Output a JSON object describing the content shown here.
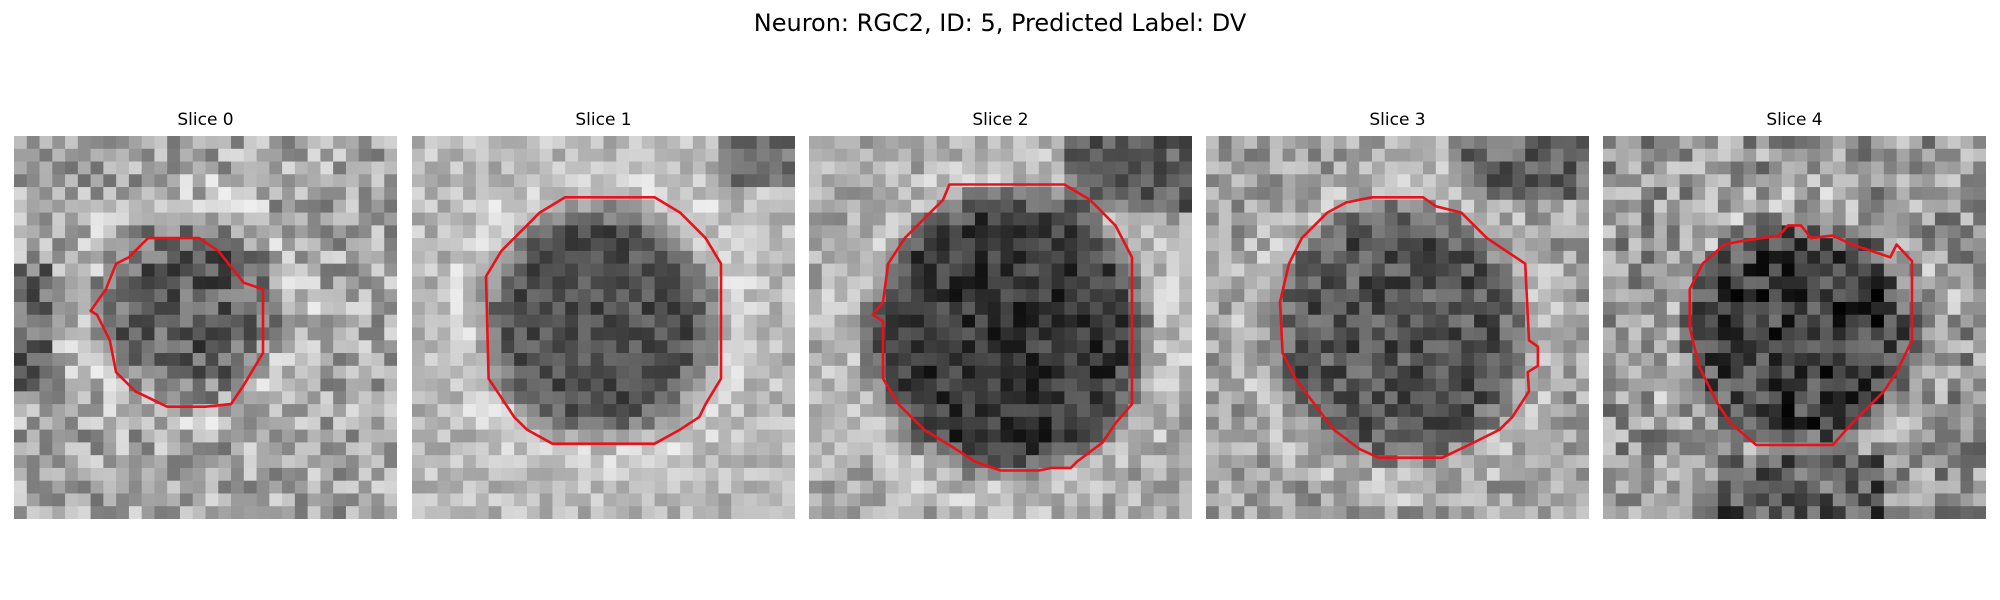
{
  "figure": {
    "title": "Neuron: RGC2, ID: 5, Predicted Label: DV"
  },
  "panels": [
    {
      "title": "Slice 0"
    },
    {
      "title": "Slice 1"
    },
    {
      "title": "Slice 2"
    },
    {
      "title": "Slice 3"
    },
    {
      "title": "Slice 4"
    }
  ],
  "colors": {
    "contour": "#e8121a",
    "background": "#ffffff"
  }
}
